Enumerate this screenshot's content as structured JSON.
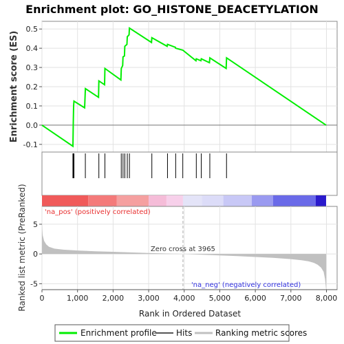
{
  "chart_data": {
    "type": "line",
    "title": "Enrichment plot: GO_HISTONE_DEACETYLATION",
    "top_panel": {
      "ylabel": "Enrichment score (ES)",
      "ylim": [
        -0.14,
        0.54
      ],
      "yticks": [
        -0.1,
        0.0,
        0.1,
        0.2,
        0.3,
        0.4,
        0.5
      ],
      "ytick_labels": [
        "-0.1",
        "0.0",
        "0.1",
        "0.2",
        "0.3",
        "0.4",
        "0.5"
      ],
      "grid": true,
      "series": [
        {
          "name": "Enrichment profile",
          "color": "#00ee00",
          "x": [
            0,
            870,
            880,
            890,
            900,
            1200,
            1220,
            1590,
            1600,
            1760,
            1770,
            2220,
            2230,
            2270,
            2280,
            2320,
            2330,
            2390,
            2400,
            2450,
            2460,
            3080,
            3090,
            3520,
            3530,
            3750,
            3760,
            3960,
            4330,
            4340,
            4470,
            4480,
            4710,
            4720,
            5180,
            5190,
            7990
          ],
          "y": [
            0.0,
            -0.11,
            0.01,
            0.1,
            0.125,
            0.09,
            0.19,
            0.145,
            0.23,
            0.21,
            0.295,
            0.235,
            0.295,
            0.31,
            0.355,
            0.36,
            0.41,
            0.42,
            0.46,
            0.47,
            0.505,
            0.43,
            0.455,
            0.41,
            0.42,
            0.405,
            0.4,
            0.39,
            0.335,
            0.345,
            0.335,
            0.345,
            0.325,
            0.35,
            0.295,
            0.35,
            0.0
          ]
        }
      ]
    },
    "hits": {
      "name": "Hits",
      "x": [
        870,
        880,
        890,
        900,
        1220,
        1600,
        1770,
        2230,
        2280,
        2330,
        2400,
        2460,
        3090,
        3530,
        3760,
        3960,
        4340,
        4480,
        4720,
        5190
      ]
    },
    "color_bar": {
      "segments": [
        {
          "x0": 0,
          "x1": 1300,
          "color": "#f05a5a"
        },
        {
          "x0": 1300,
          "x1": 2100,
          "color": "#f47a7a"
        },
        {
          "x0": 2100,
          "x1": 3000,
          "color": "#f5a0a0"
        },
        {
          "x0": 3000,
          "x1": 3500,
          "color": "#f5bcd8"
        },
        {
          "x0": 3500,
          "x1": 3965,
          "color": "#f7d0ea"
        },
        {
          "x0": 3965,
          "x1": 4500,
          "color": "#e4e4f8"
        },
        {
          "x0": 4500,
          "x1": 5100,
          "color": "#dcdcf8"
        },
        {
          "x0": 5100,
          "x1": 5900,
          "color": "#c8c8f6"
        },
        {
          "x0": 5900,
          "x1": 6500,
          "color": "#9a9af0"
        },
        {
          "x0": 6500,
          "x1": 7700,
          "color": "#6a6ae8"
        },
        {
          "x0": 7700,
          "x1": 7990,
          "color": "#2a1acc"
        }
      ]
    },
    "bottom_panel": {
      "ylabel": "Ranked list metric (PreRanked)",
      "ylim": [
        -6,
        8
      ],
      "yticks": [
        -5,
        0,
        5
      ],
      "ytick_labels": [
        "-5",
        "0",
        "5"
      ],
      "metric_profile": {
        "name": "Ranking metric scores",
        "color": "#c0c0c0",
        "x": [
          0,
          20,
          60,
          120,
          200,
          350,
          600,
          1000,
          1500,
          2000,
          2500,
          3000,
          3500,
          3965,
          4500,
          5000,
          5500,
          6000,
          6500,
          7000,
          7300,
          7500,
          7650,
          7750,
          7850,
          7920,
          7960,
          7990
        ],
        "y": [
          5.0,
          3.2,
          2.2,
          1.6,
          1.2,
          0.9,
          0.72,
          0.58,
          0.46,
          0.36,
          0.26,
          0.17,
          0.08,
          0.0,
          -0.12,
          -0.24,
          -0.36,
          -0.5,
          -0.66,
          -0.86,
          -1.05,
          -1.25,
          -1.5,
          -1.8,
          -2.3,
          -3.0,
          -4.2,
          -6.0
        ]
      },
      "annotations": {
        "pos_label": "'na_pos' (positively correlated)",
        "neg_label": "'na_neg' (negatively correlated)",
        "zero_cross_label": "Zero cross at 3965",
        "zero_cross_x": 3965,
        "pos_color": "#e83030",
        "neg_color": "#3030e0"
      }
    },
    "xlabel": "Rank in Ordered Dataset",
    "xlim": [
      0,
      8300
    ],
    "xticks": [
      0,
      1000,
      2000,
      3000,
      4000,
      5000,
      6000,
      7000,
      8000
    ],
    "xtick_labels": [
      "0",
      "1,000",
      "2,000",
      "3,000",
      "4,000",
      "5,000",
      "6,000",
      "7,000",
      "8,000"
    ],
    "legend": {
      "placement": "bottom",
      "items": [
        {
          "label": "Enrichment profile",
          "color": "#00ee00"
        },
        {
          "label": "Hits",
          "color": "#000000"
        },
        {
          "label": "Ranking metric scores",
          "color": "#c0c0c0"
        }
      ]
    }
  }
}
